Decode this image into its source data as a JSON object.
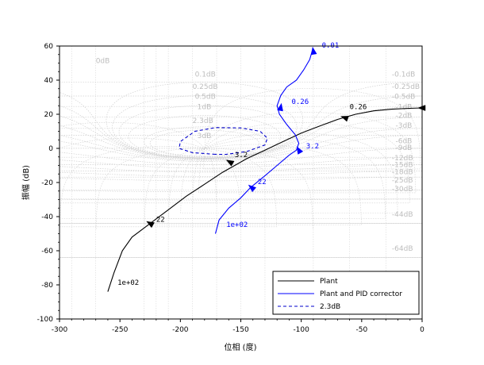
{
  "chart_data": {
    "type": "line",
    "title": "",
    "xlabel": "位相 (度)",
    "ylabel": "振幅 (dB)",
    "xlim": [
      -300,
      0
    ],
    "ylim": [
      -100,
      60
    ],
    "xticks": [
      -300,
      -250,
      -200,
      -150,
      -100,
      -50,
      0
    ],
    "yticks": [
      -100,
      -80,
      -60,
      -40,
      -20,
      0,
      20,
      40,
      60
    ],
    "grid": "nichols",
    "legend_position": "bottom-right",
    "colors": {
      "plant": "#000000",
      "corrected": "#0000ff",
      "margin": "#0000cc",
      "grid": "#d0d0d0",
      "grid_label": "#bdbdbd"
    },
    "nichols_labels": [
      {
        "text": "0dB",
        "x": -270,
        "y": 50
      },
      {
        "text": "0.1dB",
        "x": -188,
        "y": 42
      },
      {
        "text": "0.25dB",
        "x": -190,
        "y": 35
      },
      {
        "text": "0.5dB",
        "x": -188,
        "y": 29
      },
      {
        "text": "1dB",
        "x": -186,
        "y": 23
      },
      {
        "text": "2.3dB",
        "x": -190,
        "y": 15
      },
      {
        "text": "3dB",
        "x": -186,
        "y": 6
      },
      {
        "text": "-0.1dB",
        "x": -25,
        "y": 42
      },
      {
        "text": "-0.25dB",
        "x": -25,
        "y": 35
      },
      {
        "text": "-0.5dB",
        "x": -25,
        "y": 29
      },
      {
        "text": "-1dB",
        "x": -22,
        "y": 23
      },
      {
        "text": "-2dB",
        "x": -22,
        "y": 18
      },
      {
        "text": "-3dB",
        "x": -22,
        "y": 12
      },
      {
        "text": "-6dB",
        "x": -22,
        "y": 3
      },
      {
        "text": "-9dB",
        "x": -22,
        "y": -1
      },
      {
        "text": "-12dB",
        "x": -25,
        "y": -7
      },
      {
        "text": "-15dB",
        "x": -25,
        "y": -11
      },
      {
        "text": "-18dB",
        "x": -25,
        "y": -15
      },
      {
        "text": "-25dB",
        "x": -25,
        "y": -20
      },
      {
        "text": "-30dB",
        "x": -25,
        "y": -25
      },
      {
        "text": "-44dB",
        "x": -25,
        "y": -40
      },
      {
        "text": "-64dB",
        "x": -25,
        "y": -60
      }
    ],
    "series": [
      {
        "name": "Plant",
        "x": [
          -260,
          -255,
          -248,
          -240,
          -225,
          -210,
          -195,
          -180,
          -165,
          -155,
          -145,
          -130,
          -115,
          -100,
          -85,
          -70,
          -55,
          -40,
          -25,
          -10,
          0
        ],
        "y": [
          -84,
          -73,
          -60,
          -52,
          -44,
          -36,
          -28,
          -21,
          -14,
          -10,
          -6,
          -1,
          4,
          9,
          13,
          17,
          20,
          22,
          23,
          23.5,
          23.7
        ]
      },
      {
        "name": "Plant and PID corrector",
        "x": [
          -171,
          -168,
          -160,
          -150,
          -142,
          -130,
          -120,
          -110,
          -104,
          -102,
          -105,
          -112,
          -118,
          -120,
          -117,
          -112,
          -104,
          -98,
          -93,
          -91
        ],
        "y": [
          -50,
          -42,
          -35,
          -29,
          -23,
          -16,
          -10,
          -4,
          -1,
          3,
          8,
          14,
          20,
          25,
          31,
          36,
          40,
          46,
          52,
          57
        ]
      },
      {
        "name": "2.3dB",
        "x": [
          -171,
          -190,
          -201,
          -200,
          -188,
          -171,
          -150,
          -134,
          -128,
          -130,
          -145,
          -162,
          -171
        ],
        "y": [
          -3.5,
          -2.5,
          0,
          4,
          10,
          12.2,
          12,
          10,
          6,
          2,
          -1.8,
          -3.5,
          -3.5
        ]
      }
    ],
    "annotations": [
      {
        "text": "1e+02",
        "x": -252,
        "y": -80,
        "series": 0
      },
      {
        "text": "22",
        "x": -220,
        "y": -43,
        "series": 0
      },
      {
        "text": "3.2",
        "x": -155,
        "y": -5,
        "series": 0
      },
      {
        "text": "0.26",
        "x": -60,
        "y": 23,
        "series": 0
      },
      {
        "text": "1e+02",
        "x": -162,
        "y": -46,
        "series": 1
      },
      {
        "text": "22",
        "x": -136,
        "y": -21,
        "series": 1
      },
      {
        "text": "3.2",
        "x": -96,
        "y": 0,
        "series": 1
      },
      {
        "text": "0.26",
        "x": -108,
        "y": 26,
        "series": 1
      },
      {
        "text": "0.01",
        "x": -83,
        "y": 59,
        "series": 1
      }
    ],
    "arrows": [
      {
        "series": 0,
        "x": -225,
        "y": -44,
        "angle": 210
      },
      {
        "series": 0,
        "x": -159,
        "y": -8,
        "angle": 210
      },
      {
        "series": 0,
        "x": -64,
        "y": 18,
        "angle": 200
      },
      {
        "series": 0,
        "x": 0,
        "y": 23.7,
        "angle": 180
      },
      {
        "series": 1,
        "x": -141,
        "y": -23,
        "angle": 220
      },
      {
        "series": 1,
        "x": -102,
        "y": -1,
        "angle": 240
      },
      {
        "series": 1,
        "x": -117,
        "y": 24,
        "angle": 280
      },
      {
        "series": 1,
        "x": -90,
        "y": 57,
        "angle": 260
      }
    ]
  }
}
